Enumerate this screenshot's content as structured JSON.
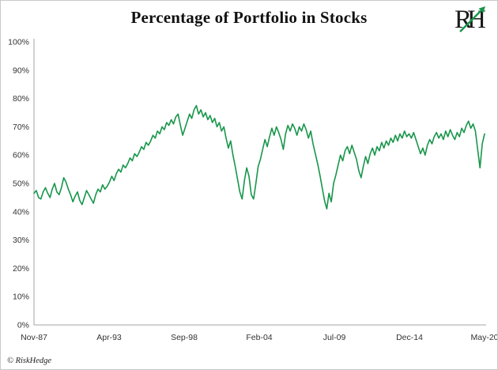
{
  "header": {
    "title": "Percentage of Portfolio in Stocks",
    "logo_text": "RH"
  },
  "footer": {
    "copyright": "© RiskHedge"
  },
  "colors": {
    "line_green": "#17964a",
    "axis_gray": "#a6a6a6",
    "logo_green": "#17964a"
  },
  "chart_data": {
    "type": "line",
    "title": "Percentage of Portfolio in Stocks",
    "xlabel": "",
    "ylabel": "",
    "ylim": [
      0,
      100
    ],
    "grid": false,
    "legend": "none",
    "y_ticks": [
      0,
      10,
      20,
      30,
      40,
      50,
      60,
      70,
      80,
      90,
      100
    ],
    "y_tick_suffix": "%",
    "x_tick_labels": [
      "Nov-87",
      "Apr-93",
      "Sep-98",
      "Feb-04",
      "Jul-09",
      "Dec-14",
      "May-20"
    ],
    "series": [
      {
        "name": "Percentage of Portfolio in Stocks",
        "color": "#17964a",
        "values": [
          46.5,
          47.5,
          45.0,
          44.5,
          47.0,
          48.5,
          46.5,
          45.0,
          48.0,
          50.0,
          47.0,
          46.0,
          48.5,
          52.0,
          50.5,
          48.0,
          46.0,
          43.5,
          45.5,
          47.0,
          44.0,
          42.5,
          45.0,
          47.5,
          46.0,
          44.5,
          43.0,
          46.0,
          48.0,
          47.0,
          49.5,
          48.0,
          49.0,
          50.5,
          52.5,
          51.0,
          53.5,
          55.0,
          54.0,
          56.5,
          55.5,
          57.0,
          59.0,
          58.0,
          60.5,
          59.5,
          61.0,
          63.0,
          62.0,
          64.5,
          63.5,
          65.0,
          67.0,
          66.0,
          68.5,
          67.5,
          70.0,
          69.0,
          71.5,
          70.5,
          72.5,
          71.0,
          73.5,
          74.5,
          70.5,
          67.0,
          69.5,
          72.0,
          74.5,
          73.0,
          76.0,
          77.5,
          74.5,
          76.0,
          73.5,
          75.0,
          72.5,
          74.0,
          71.5,
          73.0,
          70.0,
          71.5,
          68.5,
          70.0,
          66.0,
          62.5,
          65.0,
          60.0,
          56.0,
          51.5,
          47.0,
          44.5,
          51.0,
          55.5,
          52.5,
          46.0,
          44.5,
          50.0,
          56.0,
          58.5,
          62.0,
          65.5,
          63.0,
          66.5,
          69.5,
          67.0,
          70.0,
          68.0,
          65.5,
          62.0,
          67.5,
          70.5,
          68.5,
          71.0,
          69.5,
          67.0,
          70.0,
          68.5,
          71.0,
          69.0,
          66.0,
          68.5,
          64.0,
          60.5,
          57.0,
          53.0,
          48.5,
          44.0,
          41.0,
          46.5,
          43.5,
          50.0,
          53.0,
          56.5,
          60.0,
          58.0,
          61.5,
          63.0,
          60.5,
          63.5,
          61.0,
          58.5,
          54.5,
          52.0,
          56.0,
          59.5,
          57.0,
          60.5,
          62.5,
          60.0,
          63.0,
          61.5,
          64.5,
          62.5,
          65.0,
          63.5,
          66.0,
          64.5,
          67.0,
          65.0,
          67.5,
          66.0,
          68.5,
          66.5,
          67.5,
          66.0,
          68.0,
          65.5,
          63.0,
          60.5,
          62.5,
          60.0,
          63.5,
          65.5,
          64.0,
          66.5,
          68.0,
          66.0,
          67.5,
          65.5,
          68.5,
          66.5,
          69.0,
          67.0,
          65.5,
          68.0,
          66.5,
          69.5,
          68.0,
          70.5,
          72.0,
          69.5,
          71.0,
          68.5,
          62.0,
          55.5,
          64.0,
          67.5
        ]
      }
    ]
  }
}
